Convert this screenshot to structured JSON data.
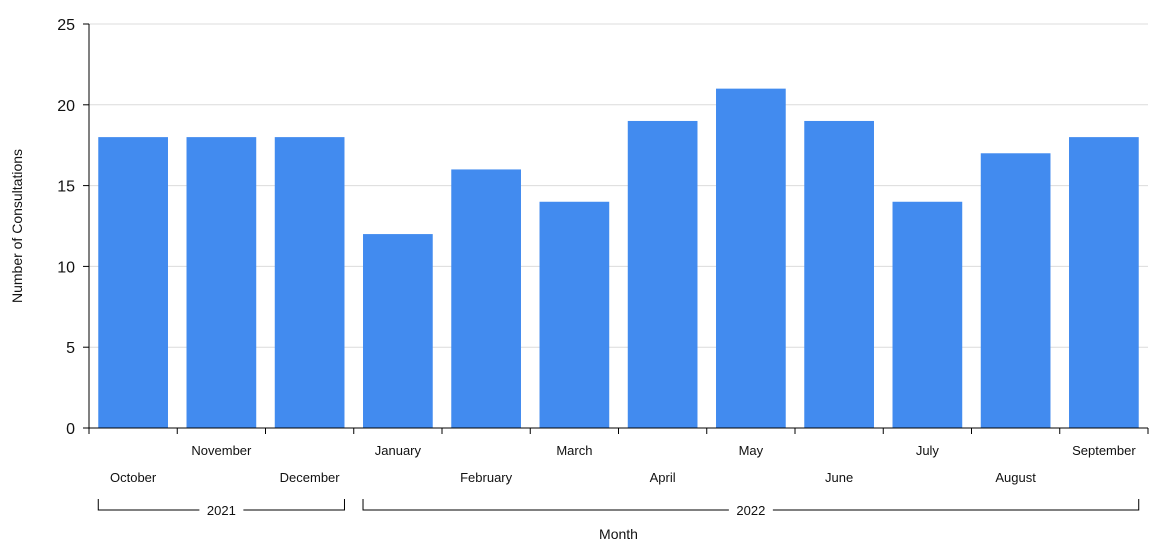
{
  "chart_data": {
    "type": "bar",
    "categories": [
      "October",
      "November",
      "December",
      "January",
      "February",
      "March",
      "April",
      "May",
      "June",
      "July",
      "August",
      "September"
    ],
    "values": [
      18,
      18,
      18,
      12,
      16,
      14,
      19,
      21,
      19,
      14,
      17,
      18
    ],
    "xlabel": "Month",
    "ylabel": "Number of Consultations",
    "ylim": [
      0,
      25
    ],
    "yticks": [
      "0",
      "5",
      "10",
      "15",
      "20",
      "25"
    ],
    "groups": [
      {
        "label": "2021",
        "from": 0,
        "to": 2
      },
      {
        "label": "2022",
        "from": 3,
        "to": 11
      }
    ],
    "bar_color": "#428bef",
    "grid": true,
    "legend": "none"
  }
}
